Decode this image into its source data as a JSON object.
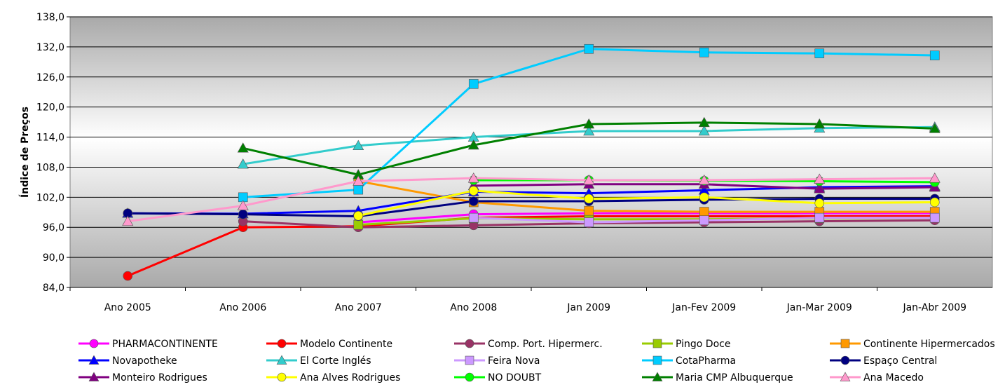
{
  "chart_data": {
    "type": "line",
    "title": "",
    "xlabel": "",
    "ylabel": "Índice de Preços",
    "ylim": [
      84,
      138
    ],
    "yticks": [
      "84,0",
      "90,0",
      "96,0",
      "102,0",
      "108,0",
      "114,0",
      "120,0",
      "126,0",
      "132,0",
      "138,0"
    ],
    "categories": [
      "Ano 2005",
      "Ano 2006",
      "Ano 2007",
      "Ano 2008",
      "Jan 2009",
      "Jan-Fev 2009",
      "Jan-Mar 2009",
      "Jan-Abr 2009"
    ],
    "grid": true,
    "legend_position": "bottom",
    "series": [
      {
        "name": "PHARMACONTINENTE",
        "color": "#ff00ff",
        "marker": "circle",
        "values": [
          null,
          null,
          97.0,
          98.6,
          98.8,
          98.8,
          98.8,
          98.8
        ]
      },
      {
        "name": "Modelo Continente",
        "color": "#ff0000",
        "marker": "circle",
        "values": [
          86.3,
          96.0,
          96.2,
          97.9,
          98.2,
          98.2,
          98.2,
          98.2
        ]
      },
      {
        "name": "Comp. Port. Hipermerc.",
        "color": "#993366",
        "marker": "circle",
        "values": [
          null,
          97.2,
          96.0,
          96.4,
          96.8,
          97.0,
          97.2,
          97.4
        ]
      },
      {
        "name": "Pingo Doce",
        "color": "#99cc00",
        "marker": "square",
        "values": [
          null,
          null,
          96.5,
          97.8,
          97.6,
          97.6,
          97.8,
          97.9
        ]
      },
      {
        "name": "Continente Hipermercados",
        "color": "#ff9900",
        "marker": "square",
        "values": [
          null,
          null,
          105.2,
          101.0,
          99.3,
          99.1,
          99.1,
          99.1
        ]
      },
      {
        "name": "Novapotheke",
        "color": "#0000ff",
        "marker": "triangle",
        "values": [
          98.8,
          98.7,
          99.3,
          103.1,
          102.8,
          103.4,
          104.0,
          104.2
        ]
      },
      {
        "name": "El Corte Inglés",
        "color": "#33cccc",
        "marker": "triangle",
        "values": [
          null,
          108.6,
          112.3,
          114.0,
          115.2,
          115.2,
          115.8,
          116.0
        ]
      },
      {
        "name": "Feira Nova",
        "color": "#cc99ff",
        "marker": "square",
        "values": [
          null,
          null,
          null,
          97.9,
          97.0,
          97.4,
          97.9,
          97.9
        ]
      },
      {
        "name": "CotaPharma",
        "color": "#00ccff",
        "marker": "square",
        "values": [
          null,
          102.0,
          103.5,
          124.6,
          131.6,
          130.9,
          130.7,
          130.3
        ]
      },
      {
        "name": "Espaço Central",
        "color": "#000080",
        "marker": "circle",
        "values": [
          98.8,
          98.6,
          98.2,
          101.2,
          101.2,
          101.5,
          101.7,
          101.7
        ]
      },
      {
        "name": "Monteiro Rodrigues",
        "color": "#800080",
        "marker": "triangle",
        "values": [
          null,
          null,
          null,
          104.3,
          104.6,
          104.6,
          103.7,
          104.0
        ]
      },
      {
        "name": "Ana Alves Rodrigues",
        "color": "#ffff00",
        "marker": "circle",
        "values": [
          null,
          null,
          98.3,
          103.3,
          101.7,
          102.0,
          100.8,
          101.0
        ]
      },
      {
        "name": "NO DOUBT",
        "color": "#00ff00",
        "marker": "circle",
        "values": [
          null,
          null,
          null,
          105.4,
          105.4,
          105.3,
          105.2,
          105.0
        ]
      },
      {
        "name": "Maria CMP Albuquerque",
        "color": "#008000",
        "marker": "triangle",
        "values": [
          null,
          111.8,
          106.5,
          112.4,
          116.6,
          116.9,
          116.6,
          115.7
        ]
      },
      {
        "name": "Ana Macedo",
        "color": "#ff99cc",
        "marker": "triangle",
        "values": [
          97.2,
          100.3,
          105.2,
          105.8,
          105.4,
          105.4,
          105.6,
          105.8
        ]
      }
    ]
  }
}
